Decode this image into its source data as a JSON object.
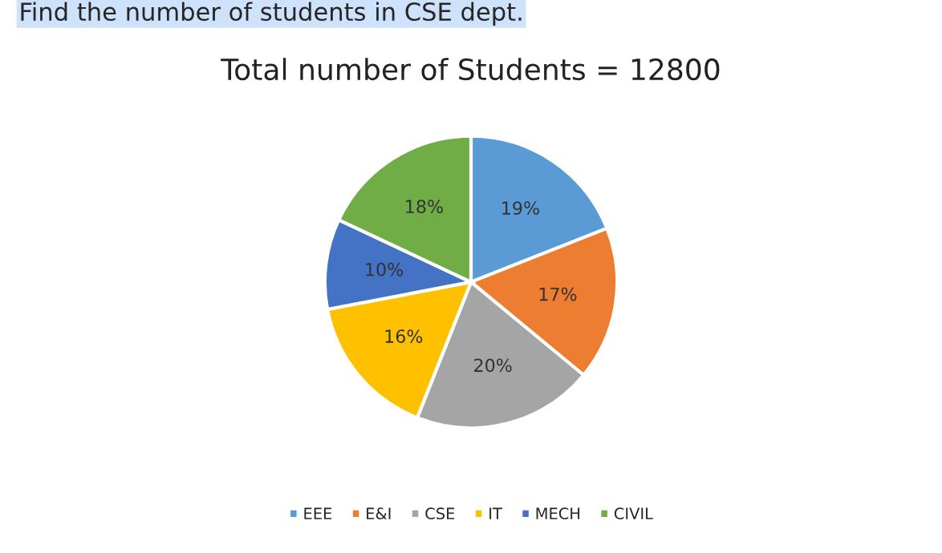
{
  "chart_data": {
    "type": "pie",
    "title": "Total number of Students = 12800",
    "annotations": [
      "Find the number of students in CSE dept."
    ],
    "categories": [
      "EEE",
      "E&I",
      "CSE",
      "IT",
      "MECH",
      "CIVIL"
    ],
    "values": [
      19,
      17,
      20,
      16,
      10,
      18
    ],
    "value_labels": [
      "19%",
      "17%",
      "20%",
      "16%",
      "10%",
      "18%"
    ],
    "colors": [
      "#5b9bd5",
      "#ed7d31",
      "#a5a5a5",
      "#ffc000",
      "#4472c4",
      "#70ad47"
    ],
    "legend": "bottom"
  }
}
